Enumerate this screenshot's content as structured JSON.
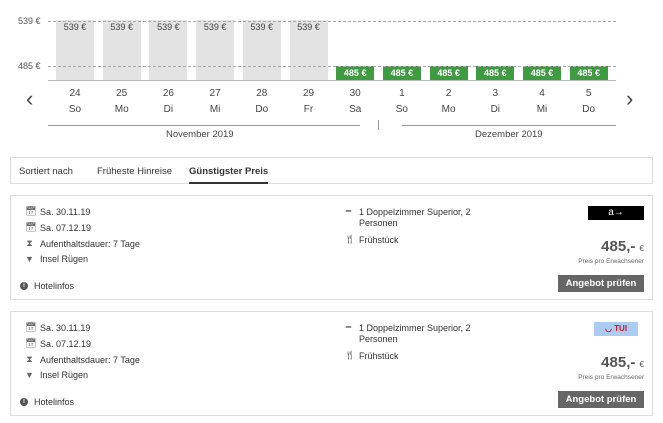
{
  "chart_data": {
    "type": "bar",
    "y_ticks": [
      "539 €",
      "485 €"
    ],
    "ylim": [
      485,
      539
    ],
    "days": [
      {
        "day": "24",
        "weekday": "So",
        "price": 539,
        "label": "539 €",
        "status": "unavailable"
      },
      {
        "day": "25",
        "weekday": "Mo",
        "price": 539,
        "label": "539 €",
        "status": "unavailable"
      },
      {
        "day": "26",
        "weekday": "Di",
        "price": 539,
        "label": "539 €",
        "status": "unavailable"
      },
      {
        "day": "27",
        "weekday": "Mi",
        "price": 539,
        "label": "539 €",
        "status": "unavailable"
      },
      {
        "day": "28",
        "weekday": "Do",
        "price": 539,
        "label": "539 €",
        "status": "unavailable"
      },
      {
        "day": "29",
        "weekday": "Fr",
        "price": 539,
        "label": "539 €",
        "status": "unavailable"
      },
      {
        "day": "30",
        "weekday": "Sa",
        "price": 485,
        "label": "485 €",
        "status": "cheapest"
      },
      {
        "day": "1",
        "weekday": "So",
        "price": 485,
        "label": "485 €",
        "status": "cheapest"
      },
      {
        "day": "2",
        "weekday": "Mo",
        "price": 485,
        "label": "485 €",
        "status": "cheapest"
      },
      {
        "day": "3",
        "weekday": "Di",
        "price": 485,
        "label": "485 €",
        "status": "cheapest"
      },
      {
        "day": "4",
        "weekday": "Mi",
        "price": 485,
        "label": "485 €",
        "status": "cheapest"
      },
      {
        "day": "5",
        "weekday": "Do",
        "price": 485,
        "label": "485 €",
        "status": "cheapest"
      }
    ],
    "months": [
      "November 2019",
      "Dezember 2019"
    ],
    "colors": {
      "gray": "#e3e3e3",
      "green": "#3e9b41"
    }
  },
  "sort": {
    "label": "Sortiert nach",
    "options": [
      "Früheste Hinreise",
      "Günstigster Preis"
    ],
    "active": "Günstigster Preis"
  },
  "offers": [
    {
      "depart": "Sa. 30.11.19",
      "return": "Sa. 07.12.19",
      "duration": "Aufenthaltsdauer: 7 Tage",
      "location": "Insel Rügen",
      "room_line1": "1 Doppelzimmer Superior, 2",
      "room_line2": "Personen",
      "board": "Frühstück",
      "price": "485,-",
      "currency": "€",
      "price_note": "Preis pro Erwachsener",
      "button": "Angebot prüfen",
      "hotelinfo": "Hotelinfos",
      "provider_logo": "a→",
      "provider": "alltours"
    },
    {
      "depart": "Sa. 30.11.19",
      "return": "Sa. 07.12.19",
      "duration": "Aufenthaltsdauer: 7 Tage",
      "location": "Insel Rügen",
      "room_line1": "1 Doppelzimmer Superior, 2",
      "room_line2": "Personen",
      "board": "Frühstück",
      "price": "485,-",
      "currency": "€",
      "price_note": "Preis pro Erwachsener",
      "button": "Angebot prüfen",
      "hotelinfo": "Hotelinfos",
      "provider_logo": "TUI",
      "provider": "TUI"
    }
  ]
}
